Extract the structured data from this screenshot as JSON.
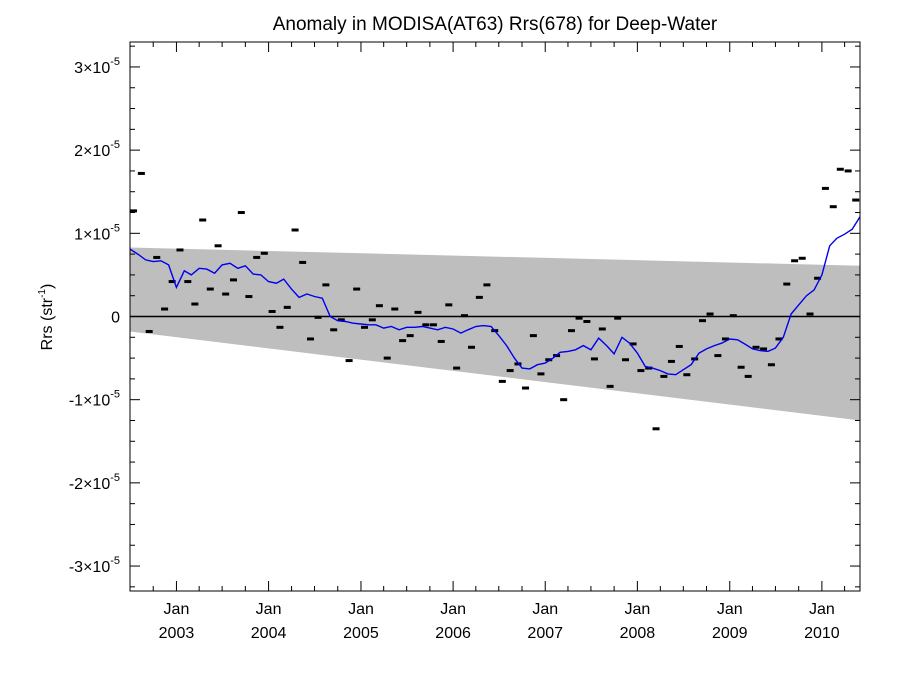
{
  "chart_data": {
    "type": "scatter",
    "title": "Anomaly in MODISA(AT63) Rrs(678) for Deep-Water",
    "ylabel": {
      "base": "Rrs (str",
      "sup": "-1",
      "close": ")"
    },
    "xlabel": "",
    "xlim": [
      "2002-07-01",
      "2010-06-01"
    ],
    "ylim": [
      -3.3e-05,
      3.3e-05
    ],
    "y_ticks": [
      {
        "value": 3e-05,
        "mantissa": "3",
        "exp": "-5"
      },
      {
        "value": 2e-05,
        "mantissa": "2",
        "exp": "-5"
      },
      {
        "value": 1e-05,
        "mantissa": "1",
        "exp": "-5"
      },
      {
        "value": 0,
        "mantissa": "0",
        "exp": ""
      },
      {
        "value": -1e-05,
        "mantissa": "-1",
        "exp": "-5"
      },
      {
        "value": -2e-05,
        "mantissa": "-2",
        "exp": "-5"
      },
      {
        "value": -3e-05,
        "mantissa": "-3",
        "exp": "-5"
      }
    ],
    "x_ticks": [
      {
        "date": "2003-01-01",
        "month": "Jan",
        "year": "2003"
      },
      {
        "date": "2004-01-01",
        "month": "Jan",
        "year": "2004"
      },
      {
        "date": "2005-01-01",
        "month": "Jan",
        "year": "2005"
      },
      {
        "date": "2006-01-01",
        "month": "Jan",
        "year": "2006"
      },
      {
        "date": "2007-01-01",
        "month": "Jan",
        "year": "2007"
      },
      {
        "date": "2008-01-01",
        "month": "Jan",
        "year": "2008"
      },
      {
        "date": "2009-01-01",
        "month": "Jan",
        "year": "2009"
      },
      {
        "date": "2010-01-01",
        "month": "Jan",
        "year": "2010"
      }
    ],
    "band": {
      "start_date": "2002-07-01",
      "end_date": "2010-06-01",
      "upper": [
        8.3e-06,
        6.1e-06
      ],
      "lower": [
        -1.8e-06,
        -1.25e-05
      ],
      "color": "#bebebe"
    },
    "zero_line": {
      "value": 0,
      "color": "#000000"
    },
    "points": {
      "color": "#000000",
      "x": [
        "2002-07-15",
        "2002-08-15",
        "2002-09-15",
        "2002-10-15",
        "2002-11-15",
        "2002-12-15",
        "2003-01-15",
        "2003-02-15",
        "2003-03-15",
        "2003-04-15",
        "2003-05-15",
        "2003-06-15",
        "2003-07-15",
        "2003-08-15",
        "2003-09-15",
        "2003-10-15",
        "2003-11-15",
        "2003-12-15",
        "2004-01-15",
        "2004-02-15",
        "2004-03-15",
        "2004-04-15",
        "2004-05-15",
        "2004-06-15",
        "2004-07-15",
        "2004-08-15",
        "2004-09-15",
        "2004-10-15",
        "2004-11-15",
        "2004-12-15",
        "2005-01-15",
        "2005-02-15",
        "2005-03-15",
        "2005-04-15",
        "2005-05-15",
        "2005-06-15",
        "2005-07-15",
        "2005-08-15",
        "2005-09-15",
        "2005-10-15",
        "2005-11-15",
        "2005-12-15",
        "2006-01-15",
        "2006-02-15",
        "2006-03-15",
        "2006-04-15",
        "2006-05-15",
        "2006-06-15",
        "2006-07-15",
        "2006-08-15",
        "2006-09-15",
        "2006-10-15",
        "2006-11-15",
        "2006-12-15",
        "2007-01-15",
        "2007-02-15",
        "2007-03-15",
        "2007-04-15",
        "2007-05-15",
        "2007-06-15",
        "2007-07-15",
        "2007-08-15",
        "2007-09-15",
        "2007-10-15",
        "2007-11-15",
        "2007-12-15",
        "2008-01-15",
        "2008-02-15",
        "2008-03-15",
        "2008-04-15",
        "2008-05-15",
        "2008-06-15",
        "2008-07-15",
        "2008-08-15",
        "2008-09-15",
        "2008-10-15",
        "2008-11-15",
        "2008-12-15",
        "2009-01-15",
        "2009-02-15",
        "2009-03-15",
        "2009-04-15",
        "2009-05-15",
        "2009-06-15",
        "2009-07-15",
        "2009-08-15",
        "2009-09-15",
        "2009-10-15",
        "2009-11-15",
        "2009-12-15",
        "2010-01-15",
        "2010-02-15",
        "2010-03-15",
        "2010-04-15",
        "2010-05-15"
      ],
      "y": [
        1.27e-05,
        1.72e-05,
        -1.8e-06,
        7.1e-06,
        9e-07,
        4.2e-06,
        8e-06,
        4.2e-06,
        1.5e-06,
        1.16e-05,
        3.3e-06,
        8.5e-06,
        2.7e-06,
        4.4e-06,
        1.25e-05,
        2.4e-06,
        7.1e-06,
        7.6e-06,
        6e-07,
        -1.3e-06,
        1.1e-06,
        1.04e-05,
        6.5e-06,
        -2.7e-06,
        -1e-07,
        3.8e-06,
        -1.6e-06,
        -4e-07,
        -5.3e-06,
        3.3e-06,
        -1.3e-06,
        -4e-07,
        1.3e-06,
        -5e-06,
        9e-07,
        -2.9e-06,
        -2.3e-06,
        5e-07,
        -1e-06,
        -1e-06,
        -3e-06,
        1.4e-06,
        -6.2e-06,
        1e-07,
        -3.7e-06,
        2.3e-06,
        3.8e-06,
        -1.7e-06,
        -7.8e-06,
        -6.5e-06,
        -5.7e-06,
        -8.6e-06,
        -2.3e-06,
        -6.9e-06,
        -5.2e-06,
        -4.7e-06,
        -1e-05,
        -1.7e-06,
        -2e-07,
        -6e-07,
        -5.1e-06,
        -1.5e-06,
        -8.4e-06,
        -2e-07,
        -5.2e-06,
        -3.3e-06,
        -6.5e-06,
        -6.2e-06,
        -1.35e-05,
        -7.2e-06,
        -5.4e-06,
        -3.6e-06,
        -7e-06,
        -5.1e-06,
        -5e-07,
        3e-07,
        -4.7e-06,
        -2.7e-06,
        1e-07,
        -6.1e-06,
        -7.2e-06,
        -3.7e-06,
        -3.9e-06,
        -5.8e-06,
        -2.7e-06,
        3.9e-06,
        6.7e-06,
        7e-06,
        3e-07,
        4.6e-06,
        1.54e-05,
        1.32e-05,
        1.77e-05,
        1.75e-05,
        1.4e-05
      ]
    },
    "series": [
      {
        "color": "#0000ee",
        "x": [
          "2002-07-01",
          "2002-08-01",
          "2002-09-01",
          "2002-10-01",
          "2002-11-01",
          "2002-12-01",
          "2003-01-01",
          "2003-02-01",
          "2003-03-01",
          "2003-04-01",
          "2003-05-01",
          "2003-06-01",
          "2003-07-01",
          "2003-08-01",
          "2003-09-01",
          "2003-10-01",
          "2003-11-01",
          "2003-12-01",
          "2004-01-01",
          "2004-02-01",
          "2004-03-01",
          "2004-04-01",
          "2004-05-01",
          "2004-06-01",
          "2004-07-01",
          "2004-08-01",
          "2004-09-01",
          "2004-10-01",
          "2004-11-01",
          "2004-12-01",
          "2005-01-01",
          "2005-02-01",
          "2005-03-01",
          "2005-04-01",
          "2005-05-01",
          "2005-06-01",
          "2005-07-01",
          "2005-08-01",
          "2005-09-01",
          "2005-10-01",
          "2005-11-01",
          "2005-12-01",
          "2006-01-01",
          "2006-02-01",
          "2006-03-01",
          "2006-04-01",
          "2006-05-01",
          "2006-06-01",
          "2006-07-01",
          "2006-08-01",
          "2006-09-01",
          "2006-10-01",
          "2006-11-01",
          "2006-12-01",
          "2007-01-01",
          "2007-02-01",
          "2007-03-01",
          "2007-04-01",
          "2007-05-01",
          "2007-06-01",
          "2007-07-01",
          "2007-08-01",
          "2007-09-01",
          "2007-10-01",
          "2007-11-01",
          "2007-12-01",
          "2008-01-01",
          "2008-02-01",
          "2008-03-01",
          "2008-04-01",
          "2008-05-01",
          "2008-06-01",
          "2008-07-01",
          "2008-08-01",
          "2008-09-01",
          "2008-10-01",
          "2008-11-01",
          "2008-12-01",
          "2009-01-01",
          "2009-02-01",
          "2009-03-01",
          "2009-04-01",
          "2009-05-01",
          "2009-06-01",
          "2009-07-01",
          "2009-08-01",
          "2009-09-01",
          "2009-10-01",
          "2009-11-01",
          "2009-12-01",
          "2010-01-01",
          "2010-02-01",
          "2010-03-01",
          "2010-04-01",
          "2010-05-01",
          "2010-06-01"
        ],
        "values": [
          8.1e-06,
          7.5e-06,
          6.8e-06,
          6.6e-06,
          6.7e-06,
          6.2e-06,
          3.5e-06,
          5.5e-06,
          5e-06,
          5.8e-06,
          5.7e-06,
          5.2e-06,
          6.2e-06,
          6.4e-06,
          5.8e-06,
          6.1e-06,
          5.1e-06,
          5e-06,
          4.2e-06,
          4e-06,
          4.5e-06,
          3.3e-06,
          2.3e-06,
          2.7e-06,
          2.4e-06,
          2.2e-06,
          0,
          -5e-07,
          -6e-07,
          -8e-07,
          -9e-07,
          -1e-06,
          -1e-06,
          -1.4e-06,
          -1.2e-06,
          -1.6e-06,
          -1.3e-06,
          -1.3e-06,
          -1.2e-06,
          -1.4e-06,
          -1.6e-06,
          -1.3e-06,
          -1.5e-06,
          -2e-06,
          -1.6e-06,
          -1.2e-06,
          -1.1e-06,
          -1.2e-06,
          -2.3e-06,
          -3.5e-06,
          -5e-06,
          -6.2e-06,
          -6.3e-06,
          -5.8e-06,
          -5.6e-06,
          -5e-06,
          -4.3e-06,
          -4.2e-06,
          -4e-06,
          -3.5e-06,
          -4e-06,
          -2.6e-06,
          -3.5e-06,
          -4.5e-06,
          -2.5e-06,
          -3.2e-06,
          -4.4e-06,
          -6e-06,
          -6.2e-06,
          -6.5e-06,
          -6.9e-06,
          -7e-06,
          -6.4e-06,
          -5.8e-06,
          -4.4e-06,
          -3.9e-06,
          -3.5e-06,
          -3.2e-06,
          -2.7e-06,
          -2.8e-06,
          -3.3e-06,
          -3.9e-06,
          -4.1e-06,
          -4.2e-06,
          -3.8e-06,
          -2.5e-06,
          3e-07,
          1.4e-06,
          2.5e-06,
          3.2e-06,
          5e-06,
          8.5e-06,
          9.4e-06,
          9.9e-06,
          1.05e-05,
          1.2e-05
        ]
      }
    ],
    "grid": false,
    "legend": "none"
  }
}
